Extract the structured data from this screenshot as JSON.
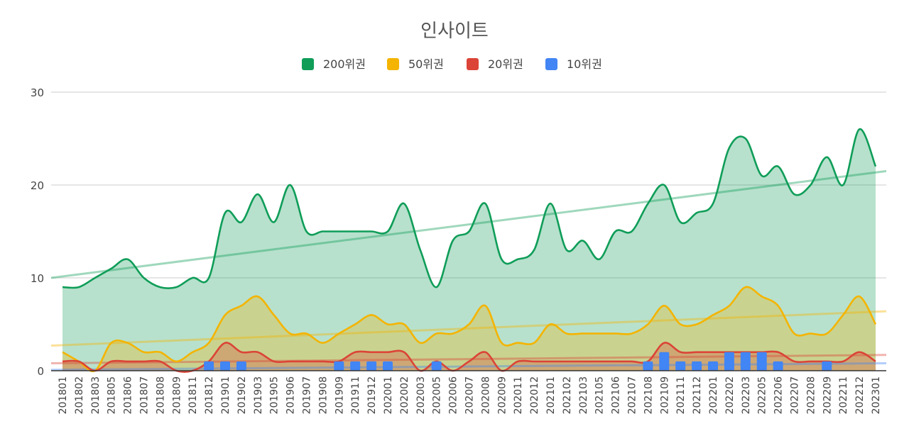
{
  "chart_data": {
    "type": "area",
    "title": "인사이트",
    "xlabel": "",
    "ylabel": "",
    "ylim": [
      0,
      30
    ],
    "yticks": [
      0,
      10,
      20,
      30
    ],
    "grid": true,
    "legend_position": "top",
    "categories": [
      "201801",
      "201802",
      "201803",
      "201805",
      "201806",
      "201807",
      "201808",
      "201809",
      "201811",
      "201812",
      "201901",
      "201902",
      "201903",
      "201905",
      "201906",
      "201907",
      "201908",
      "201909",
      "201911",
      "201912",
      "202001",
      "202002",
      "202003",
      "202005",
      "202006",
      "202007",
      "202008",
      "202009",
      "202011",
      "202012",
      "202101",
      "202102",
      "202103",
      "202105",
      "202106",
      "202107",
      "202108",
      "202109",
      "202111",
      "202112",
      "202201",
      "202202",
      "202203",
      "202205",
      "202206",
      "202207",
      "202208",
      "202209",
      "202211",
      "202212",
      "202301"
    ],
    "series": [
      {
        "name": "200위권",
        "color": "#0f9d58",
        "type": "area",
        "values": [
          9,
          9,
          10,
          11,
          12,
          10,
          9,
          9,
          10,
          10,
          17,
          16,
          19,
          16,
          20,
          15,
          15,
          15,
          15,
          15,
          15,
          18,
          13,
          9,
          14,
          15,
          18,
          12,
          12,
          13,
          18,
          13,
          14,
          12,
          15,
          15,
          18,
          20,
          16,
          17,
          18,
          24,
          25,
          21,
          22,
          19,
          20,
          23,
          20,
          26,
          22
        ],
        "trend": [
          10.0,
          21.5
        ]
      },
      {
        "name": "50위권",
        "color": "#f4b400",
        "type": "area",
        "values": [
          2,
          1,
          0,
          3,
          3,
          2,
          2,
          1,
          2,
          3,
          6,
          7,
          8,
          6,
          4,
          4,
          3,
          4,
          5,
          6,
          5,
          5,
          3,
          4,
          4,
          5,
          7,
          3,
          3,
          3,
          5,
          4,
          4,
          4,
          4,
          4,
          5,
          7,
          5,
          5,
          6,
          7,
          9,
          8,
          7,
          4,
          4,
          4,
          6,
          8,
          5
        ],
        "trend": [
          2.7,
          6.4
        ]
      },
      {
        "name": "20위권",
        "color": "#db4437",
        "type": "area",
        "values": [
          1,
          1,
          0,
          1,
          1,
          1,
          1,
          0,
          0,
          1,
          3,
          2,
          2,
          1,
          1,
          1,
          1,
          1,
          2,
          2,
          2,
          2,
          0,
          1,
          0,
          1,
          2,
          0,
          1,
          1,
          1,
          1,
          1,
          1,
          1,
          1,
          1,
          3,
          2,
          2,
          2,
          2,
          2,
          2,
          2,
          1,
          1,
          1,
          1,
          2,
          1
        ],
        "trend": [
          0.8,
          1.7
        ]
      },
      {
        "name": "10위권",
        "color": "#4285f4",
        "type": "bar",
        "values": [
          0,
          0,
          0,
          0,
          0,
          0,
          0,
          0,
          0,
          1,
          1,
          1,
          0,
          0,
          0,
          0,
          0,
          1,
          1,
          1,
          1,
          0,
          0,
          1,
          0,
          0,
          0,
          0,
          0,
          0,
          0,
          0,
          0,
          0,
          0,
          0,
          1,
          2,
          1,
          1,
          1,
          2,
          2,
          2,
          1,
          0,
          0,
          1,
          0,
          0,
          0
        ],
        "trend": [
          0.1,
          0.8
        ]
      }
    ]
  }
}
